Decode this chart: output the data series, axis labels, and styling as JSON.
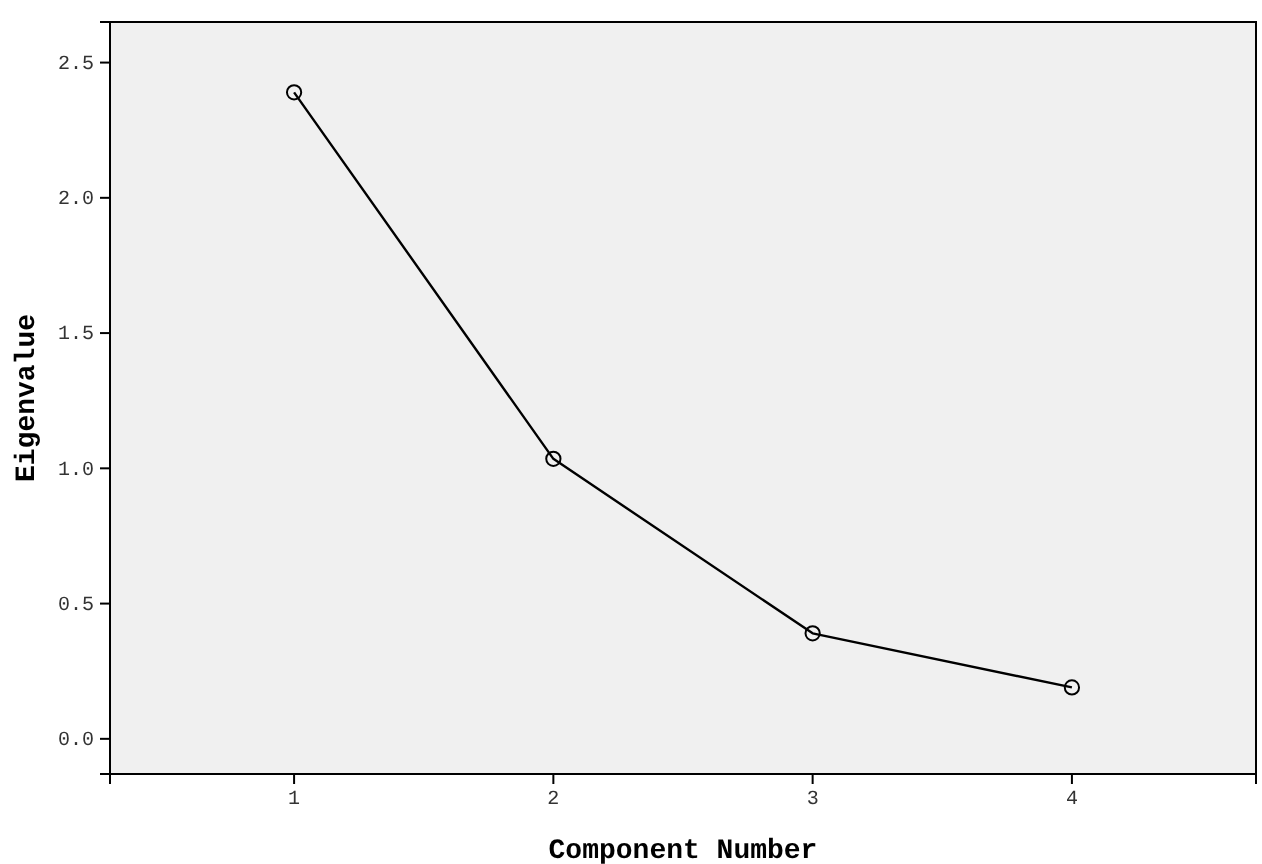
{
  "chart_data": {
    "type": "line",
    "xlabel": "Component Number",
    "ylabel": "Eigenvalue",
    "categories": [
      "1",
      "2",
      "3",
      "4"
    ],
    "series": [
      {
        "color": "#000000",
        "values": [
          2.39,
          1.035,
          0.39,
          0.19
        ]
      }
    ],
    "ylim": [
      -0.13,
      2.65
    ],
    "yticks": [
      {
        "value": 0,
        "label": "0.0"
      },
      {
        "value": 0.5,
        "label": "0.5"
      },
      {
        "value": 1,
        "label": "1.0"
      },
      {
        "value": 1.5,
        "label": "1.5"
      },
      {
        "value": 2,
        "label": "2.0"
      },
      {
        "value": 2.5,
        "label": "2.5"
      }
    ],
    "marker": "circle",
    "line_style": "solid"
  }
}
